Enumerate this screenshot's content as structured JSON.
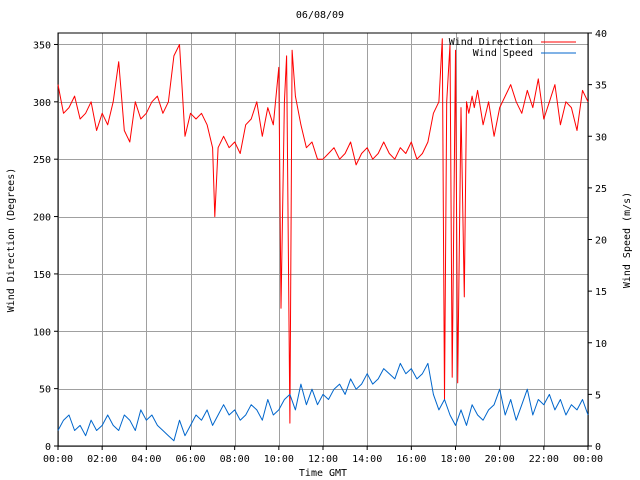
{
  "chart_data": {
    "type": "line",
    "title": "06/08/09",
    "xlabel": "Time GMT",
    "ylabel_left": "Wind Direction (Degrees)",
    "ylabel_right": "Wind Speed (m/s)",
    "xlim": [
      0,
      24
    ],
    "ylim_left": [
      0,
      360
    ],
    "ylim_right": [
      0,
      40
    ],
    "x_ticks": [
      {
        "value": 0,
        "label": "00:00"
      },
      {
        "value": 2,
        "label": "02:00"
      },
      {
        "value": 4,
        "label": "04:00"
      },
      {
        "value": 6,
        "label": "06:00"
      },
      {
        "value": 8,
        "label": "08:00"
      },
      {
        "value": 10,
        "label": "10:00"
      },
      {
        "value": 12,
        "label": "12:00"
      },
      {
        "value": 14,
        "label": "14:00"
      },
      {
        "value": 16,
        "label": "16:00"
      },
      {
        "value": 18,
        "label": "18:00"
      },
      {
        "value": 20,
        "label": "20:00"
      },
      {
        "value": 22,
        "label": "22:00"
      },
      {
        "value": 24,
        "label": "00:00"
      }
    ],
    "y_ticks_left": [
      0,
      50,
      100,
      150,
      200,
      250,
      300,
      350
    ],
    "y_ticks_right": [
      0,
      5,
      10,
      15,
      20,
      25,
      30,
      35,
      40
    ],
    "grid": true,
    "legend_position": "top-right",
    "series": [
      {
        "name": "Wind Direction",
        "axis": "left",
        "color": "#ff0000",
        "x": [
          0,
          0.25,
          0.5,
          0.75,
          1,
          1.25,
          1.5,
          1.75,
          2,
          2.25,
          2.5,
          2.75,
          3,
          3.25,
          3.5,
          3.75,
          4,
          4.25,
          4.5,
          4.75,
          5,
          5.25,
          5.5,
          5.75,
          6,
          6.25,
          6.5,
          6.75,
          7,
          7.1,
          7.25,
          7.5,
          7.75,
          8,
          8.25,
          8.5,
          8.75,
          9,
          9.25,
          9.5,
          9.75,
          10,
          10.1,
          10.25,
          10.35,
          10.5,
          10.6,
          10.75,
          11,
          11.25,
          11.5,
          11.75,
          12,
          12.25,
          12.5,
          12.75,
          13,
          13.25,
          13.5,
          13.75,
          14,
          14.25,
          14.5,
          14.75,
          15,
          15.25,
          15.5,
          15.75,
          16,
          16.25,
          16.5,
          16.75,
          17,
          17.25,
          17.4,
          17.5,
          17.6,
          17.75,
          17.85,
          18,
          18.1,
          18.25,
          18.4,
          18.5,
          18.6,
          18.75,
          18.85,
          19,
          19.25,
          19.5,
          19.75,
          20,
          20.25,
          20.5,
          20.75,
          21,
          21.25,
          21.5,
          21.75,
          22,
          22.25,
          22.5,
          22.75,
          23,
          23.25,
          23.5,
          23.75,
          24
        ],
        "values": [
          315,
          290,
          295,
          305,
          285,
          290,
          300,
          275,
          290,
          280,
          300,
          335,
          275,
          265,
          300,
          285,
          290,
          300,
          305,
          290,
          300,
          340,
          350,
          270,
          290,
          285,
          290,
          280,
          260,
          200,
          260,
          270,
          260,
          265,
          255,
          280,
          285,
          300,
          270,
          295,
          280,
          330,
          120,
          300,
          340,
          20,
          345,
          305,
          280,
          260,
          265,
          250,
          250,
          255,
          260,
          250,
          255,
          265,
          245,
          255,
          260,
          250,
          255,
          265,
          255,
          250,
          260,
          255,
          265,
          250,
          255,
          265,
          290,
          300,
          355,
          40,
          300,
          350,
          60,
          345,
          55,
          295,
          130,
          300,
          290,
          305,
          295,
          310,
          280,
          300,
          270,
          295,
          305,
          315,
          300,
          290,
          310,
          295,
          320,
          285,
          300,
          315,
          280,
          300,
          295,
          275,
          310,
          300
        ]
      },
      {
        "name": "Wind Speed",
        "axis": "right",
        "color": "#0066cc",
        "x": [
          0,
          0.25,
          0.5,
          0.75,
          1,
          1.25,
          1.5,
          1.75,
          2,
          2.25,
          2.5,
          2.75,
          3,
          3.25,
          3.5,
          3.75,
          4,
          4.25,
          4.5,
          4.75,
          5,
          5.25,
          5.5,
          5.75,
          6,
          6.25,
          6.5,
          6.75,
          7,
          7.25,
          7.5,
          7.75,
          8,
          8.25,
          8.5,
          8.75,
          9,
          9.25,
          9.5,
          9.75,
          10,
          10.25,
          10.5,
          10.75,
          11,
          11.25,
          11.5,
          11.75,
          12,
          12.25,
          12.5,
          12.75,
          13,
          13.25,
          13.5,
          13.75,
          14,
          14.25,
          14.5,
          14.75,
          15,
          15.25,
          15.5,
          15.75,
          16,
          16.25,
          16.5,
          16.75,
          17,
          17.25,
          17.5,
          17.75,
          18,
          18.25,
          18.5,
          18.75,
          19,
          19.25,
          19.5,
          19.75,
          20,
          20.25,
          20.5,
          20.75,
          21,
          21.25,
          21.5,
          21.75,
          22,
          22.25,
          22.5,
          22.75,
          23,
          23.25,
          23.5,
          23.75,
          24
        ],
        "values": [
          1.5,
          2.5,
          3,
          1.5,
          2,
          1,
          2.5,
          1.5,
          2,
          3,
          2,
          1.5,
          3,
          2.5,
          1.5,
          3.5,
          2.5,
          3,
          2,
          1.5,
          1,
          0.5,
          2.5,
          1,
          2,
          3,
          2.5,
          3.5,
          2,
          3,
          4,
          3,
          3.5,
          2.5,
          3,
          4,
          3.5,
          2.5,
          4.5,
          3,
          3.5,
          4.5,
          5,
          3.5,
          6,
          4,
          5.5,
          4,
          5,
          4.5,
          5.5,
          6,
          5,
          6.5,
          5.5,
          6,
          7,
          6,
          6.5,
          7.5,
          7,
          6.5,
          8,
          7,
          7.5,
          6.5,
          7,
          8,
          5,
          3.5,
          4.5,
          3,
          2,
          3.5,
          2,
          4,
          3,
          2.5,
          3.5,
          4,
          5.5,
          3,
          4.5,
          2.5,
          4,
          5.5,
          3,
          4.5,
          4,
          5,
          3.5,
          4.5,
          3,
          4,
          3.5,
          4.5,
          3
        ]
      }
    ]
  }
}
